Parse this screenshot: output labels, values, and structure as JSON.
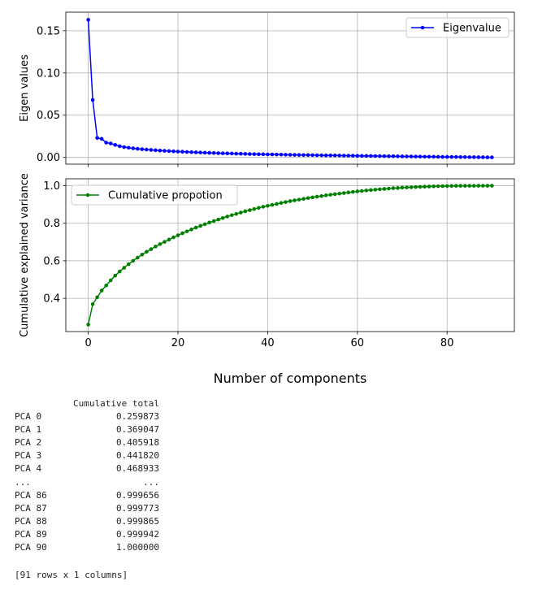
{
  "chart_data": [
    {
      "type": "line",
      "ylabel": "Eigen values",
      "xlim": [
        -5,
        95
      ],
      "ylim": [
        -0.008,
        0.172
      ],
      "xticks": [
        0,
        20,
        40,
        60,
        80
      ],
      "yticks": [
        0.0,
        0.05,
        0.1,
        0.15
      ],
      "ytick_labels": [
        "0.00",
        "0.05",
        "0.10",
        "0.15"
      ],
      "grid": true,
      "legend_position": "upper-right",
      "series": [
        {
          "name": "Eigenvalue",
          "color": "#0000ff",
          "marker": "dot",
          "x": [
            0,
            1,
            2,
            3,
            4,
            5,
            6,
            7,
            8,
            9,
            10,
            11,
            12,
            13,
            14,
            15,
            16,
            17,
            18,
            19,
            20,
            21,
            22,
            23,
            24,
            25,
            26,
            27,
            28,
            29,
            30,
            31,
            32,
            33,
            34,
            35,
            36,
            37,
            38,
            39,
            40,
            41,
            42,
            43,
            44,
            45,
            46,
            47,
            48,
            49,
            50,
            51,
            52,
            53,
            54,
            55,
            56,
            57,
            58,
            59,
            60,
            61,
            62,
            63,
            64,
            65,
            66,
            67,
            68,
            69,
            70,
            71,
            72,
            73,
            74,
            75,
            76,
            77,
            78,
            79,
            80,
            81,
            82,
            83,
            84,
            85,
            86,
            87,
            88,
            89,
            90
          ],
          "values": [
            0.163,
            0.068,
            0.023,
            0.022,
            0.0175,
            0.0165,
            0.0148,
            0.0133,
            0.0122,
            0.0115,
            0.0108,
            0.0102,
            0.0097,
            0.0093,
            0.0089,
            0.0085,
            0.0081,
            0.0078,
            0.0075,
            0.0072,
            0.0069,
            0.0067,
            0.0064,
            0.0062,
            0.006,
            0.0058,
            0.0056,
            0.0054,
            0.0052,
            0.005,
            0.0049,
            0.0047,
            0.0046,
            0.0044,
            0.0043,
            0.0042,
            0.004,
            0.0039,
            0.0038,
            0.0037,
            0.0036,
            0.0035,
            0.0034,
            0.0033,
            0.0032,
            0.0031,
            0.003,
            0.0029,
            0.0028,
            0.0028,
            0.0027,
            0.0026,
            0.0025,
            0.0024,
            0.0024,
            0.0023,
            0.0022,
            0.0021,
            0.0021,
            0.002,
            0.0019,
            0.0018,
            0.0018,
            0.0017,
            0.0016,
            0.0016,
            0.0015,
            0.0014,
            0.0014,
            0.0013,
            0.0012,
            0.0012,
            0.0011,
            0.001,
            0.001,
            0.0009,
            0.0008,
            0.0008,
            0.0007,
            0.0006,
            0.0006,
            0.0005,
            0.0005,
            0.0004,
            0.0004,
            0.0003,
            0.0003,
            0.0002,
            0.0002,
            0.0001,
            0.0001
          ]
        }
      ]
    },
    {
      "type": "line",
      "ylabel": "Cumulative explained variance",
      "xlabel": "Number of components",
      "xlim": [
        -5,
        95
      ],
      "ylim": [
        0.223,
        1.037
      ],
      "xticks": [
        0,
        20,
        40,
        60,
        80
      ],
      "yticks": [
        0.4,
        0.6,
        0.8,
        1.0
      ],
      "ytick_labels": [
        "0.4",
        "0.6",
        "0.8",
        "1.0"
      ],
      "grid": true,
      "legend_position": "upper-left",
      "series": [
        {
          "name": "Cumulative propotion",
          "color": "#008000",
          "marker": "dot",
          "x": [
            0,
            1,
            2,
            3,
            4,
            5,
            6,
            7,
            8,
            9,
            10,
            11,
            12,
            13,
            14,
            15,
            16,
            17,
            18,
            19,
            20,
            21,
            22,
            23,
            24,
            25,
            26,
            27,
            28,
            29,
            30,
            31,
            32,
            33,
            34,
            35,
            36,
            37,
            38,
            39,
            40,
            41,
            42,
            43,
            44,
            45,
            46,
            47,
            48,
            49,
            50,
            51,
            52,
            53,
            54,
            55,
            56,
            57,
            58,
            59,
            60,
            61,
            62,
            63,
            64,
            65,
            66,
            67,
            68,
            69,
            70,
            71,
            72,
            73,
            74,
            75,
            76,
            77,
            78,
            79,
            80,
            81,
            82,
            83,
            84,
            85,
            86,
            87,
            88,
            89,
            90
          ],
          "values": [
            0.259873,
            0.369047,
            0.405918,
            0.44182,
            0.468933,
            0.496,
            0.521,
            0.543,
            0.563,
            0.582,
            0.6,
            0.617,
            0.633,
            0.648,
            0.662,
            0.676,
            0.689,
            0.701,
            0.713,
            0.725,
            0.736,
            0.747,
            0.757,
            0.767,
            0.777,
            0.786,
            0.795,
            0.804,
            0.812,
            0.82,
            0.828,
            0.836,
            0.843,
            0.85,
            0.857,
            0.864,
            0.87,
            0.876,
            0.882,
            0.888,
            0.893,
            0.898,
            0.903,
            0.908,
            0.913,
            0.918,
            0.922,
            0.926,
            0.93,
            0.934,
            0.938,
            0.942,
            0.945,
            0.949,
            0.952,
            0.955,
            0.958,
            0.961,
            0.964,
            0.967,
            0.97,
            0.972,
            0.975,
            0.977,
            0.979,
            0.981,
            0.983,
            0.985,
            0.987,
            0.988,
            0.99,
            0.991,
            0.992,
            0.993,
            0.994,
            0.995,
            0.996,
            0.997,
            0.9975,
            0.998,
            0.9985,
            0.9989,
            0.9992,
            0.9994,
            0.9995,
            0.9996,
            0.999656,
            0.999773,
            0.999865,
            0.999942,
            1.0
          ]
        }
      ]
    }
  ],
  "table": {
    "header": "Cumulative total",
    "rows": [
      {
        "index": "PCA 0",
        "value": "0.259873"
      },
      {
        "index": "PCA 1",
        "value": "0.369047"
      },
      {
        "index": "PCA 2",
        "value": "0.405918"
      },
      {
        "index": "PCA 3",
        "value": "0.441820"
      },
      {
        "index": "PCA 4",
        "value": "0.468933"
      },
      {
        "index": "...",
        "value": "..."
      },
      {
        "index": "PCA 86",
        "value": "0.999656"
      },
      {
        "index": "PCA 87",
        "value": "0.999773"
      },
      {
        "index": "PCA 88",
        "value": "0.999865"
      },
      {
        "index": "PCA 89",
        "value": "0.999942"
      },
      {
        "index": "PCA 90",
        "value": "1.000000"
      }
    ],
    "footer": "[91 rows x 1 columns]"
  }
}
